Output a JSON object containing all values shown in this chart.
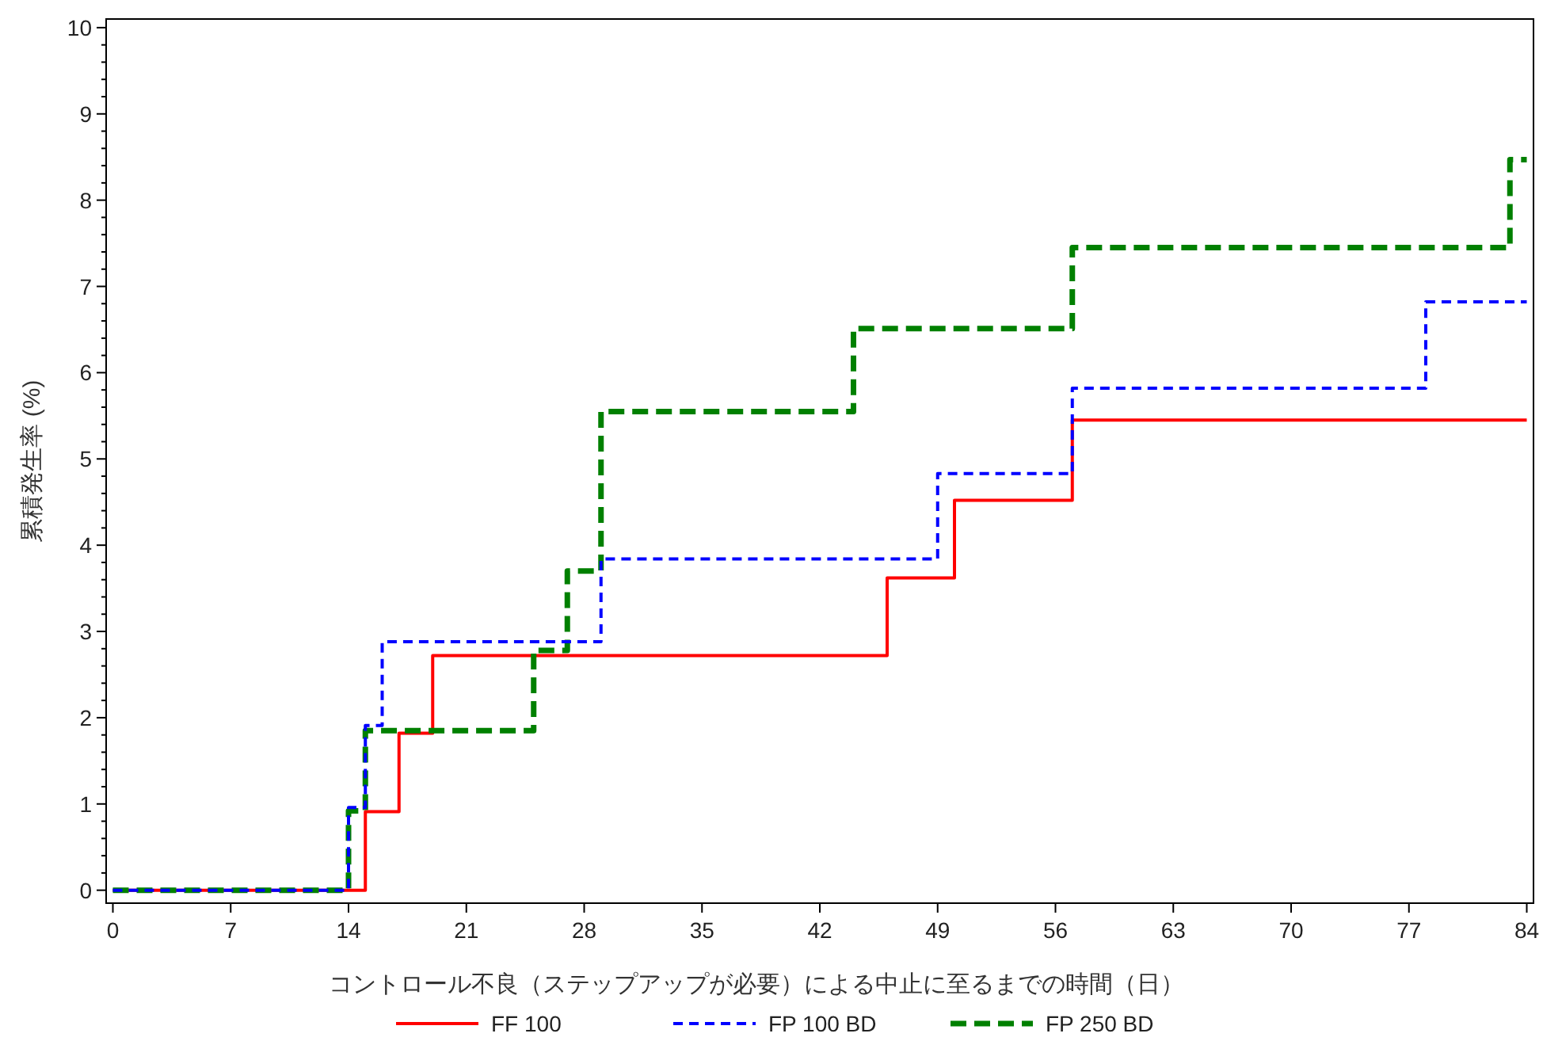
{
  "chart_data": {
    "type": "step",
    "xlabel": "コントロール不良（ステップアップが必要）による中止に至るまでの時間（日）",
    "ylabel": "累積発生率 (%)",
    "xlim": [
      -0.4,
      84.4
    ],
    "ylim": [
      -0.15,
      10.1
    ],
    "xticks": [
      0,
      7,
      14,
      21,
      28,
      35,
      42,
      49,
      56,
      63,
      70,
      77,
      84
    ],
    "yticks": [
      0,
      1,
      2,
      3,
      4,
      5,
      6,
      7,
      8,
      9,
      10
    ],
    "grid": false,
    "legend": "bottom",
    "series": [
      {
        "name": "FF 100",
        "color": "#ff0000",
        "line_style": "solid",
        "x": [
          0,
          15,
          17,
          19,
          46,
          50,
          57,
          84
        ],
        "values": [
          0,
          0.91,
          1.82,
          2.72,
          3.62,
          4.52,
          5.45,
          5.45
        ]
      },
      {
        "name": "FP 100 BD",
        "color": "#0000ff",
        "line_style": "dashed",
        "x": [
          0,
          14,
          15,
          16,
          29,
          49,
          57,
          78,
          84
        ],
        "values": [
          0,
          0.96,
          1.91,
          2.88,
          3.84,
          4.83,
          5.82,
          6.82,
          6.82
        ]
      },
      {
        "name": "FP 250 BD",
        "color": "#008000",
        "line_style": "dashed",
        "x": [
          0,
          14,
          15,
          25,
          27,
          29,
          44,
          57,
          83,
          84
        ],
        "values": [
          0,
          0.92,
          1.85,
          2.78,
          3.7,
          5.55,
          6.51,
          7.45,
          8.47,
          8.47
        ]
      }
    ]
  }
}
